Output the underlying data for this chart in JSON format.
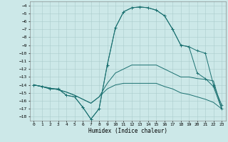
{
  "xlabel": "Humidex (Indice chaleur)",
  "bg_color": "#cce8e8",
  "grid_color": "#aacccc",
  "line_color": "#1a7070",
  "xlim": [
    -0.5,
    23.5
  ],
  "ylim": [
    -18.5,
    -3.5
  ],
  "xticks": [
    0,
    1,
    2,
    3,
    4,
    5,
    6,
    7,
    8,
    9,
    10,
    11,
    12,
    13,
    14,
    15,
    16,
    17,
    18,
    19,
    20,
    21,
    22,
    23
  ],
  "yticks": [
    -4,
    -5,
    -6,
    -7,
    -8,
    -9,
    -10,
    -11,
    -12,
    -13,
    -14,
    -15,
    -16,
    -17,
    -18
  ],
  "series": {
    "line1_x": [
      0,
      1,
      2,
      3,
      4,
      5,
      6,
      7,
      8,
      9,
      10,
      11,
      12,
      13,
      14,
      15,
      16,
      17,
      18,
      19,
      20,
      21,
      22,
      23
    ],
    "line1_y": [
      -14,
      -14.2,
      -14.5,
      -14.5,
      -15.3,
      -15.5,
      -16.8,
      -18.3,
      -17.0,
      -11.5,
      -6.8,
      -4.8,
      -4.3,
      -4.2,
      -4.3,
      -4.6,
      -5.3,
      -7.0,
      -9.0,
      -9.2,
      -9.7,
      -10.0,
      -14.0,
      -16.5
    ],
    "line2_x": [
      0,
      1,
      2,
      3,
      4,
      5,
      6,
      7,
      8,
      9,
      10,
      11,
      12,
      13,
      14,
      15,
      16,
      17,
      18,
      19,
      20,
      21,
      22,
      23
    ],
    "line2_y": [
      -14,
      -14.2,
      -14.5,
      -14.5,
      -15.3,
      -15.5,
      -16.8,
      -18.3,
      -17.0,
      -11.5,
      -6.8,
      -4.8,
      -4.3,
      -4.2,
      -4.3,
      -4.6,
      -5.3,
      -7.0,
      -9.0,
      -9.2,
      -12.5,
      -13.2,
      -14.2,
      -17.0
    ],
    "line3_x": [
      0,
      1,
      2,
      3,
      4,
      5,
      6,
      7,
      8,
      9,
      10,
      11,
      12,
      13,
      14,
      15,
      16,
      17,
      18,
      19,
      20,
      21,
      22,
      23
    ],
    "line3_y": [
      -14,
      -14.2,
      -14.4,
      -14.6,
      -14.9,
      -15.3,
      -15.8,
      -16.3,
      -15.5,
      -13.8,
      -12.5,
      -12.0,
      -11.5,
      -11.5,
      -11.5,
      -11.5,
      -12.0,
      -12.5,
      -13.0,
      -13.0,
      -13.2,
      -13.3,
      -13.5,
      -17.0
    ],
    "line4_x": [
      0,
      1,
      2,
      3,
      4,
      5,
      6,
      7,
      8,
      9,
      10,
      11,
      12,
      13,
      14,
      15,
      16,
      17,
      18,
      19,
      20,
      21,
      22,
      23
    ],
    "line4_y": [
      -14,
      -14.2,
      -14.4,
      -14.6,
      -14.9,
      -15.3,
      -15.8,
      -16.3,
      -15.5,
      -14.5,
      -14.0,
      -13.8,
      -13.8,
      -13.8,
      -13.8,
      -13.8,
      -14.2,
      -14.5,
      -15.0,
      -15.2,
      -15.5,
      -15.8,
      -16.2,
      -17.0
    ]
  }
}
